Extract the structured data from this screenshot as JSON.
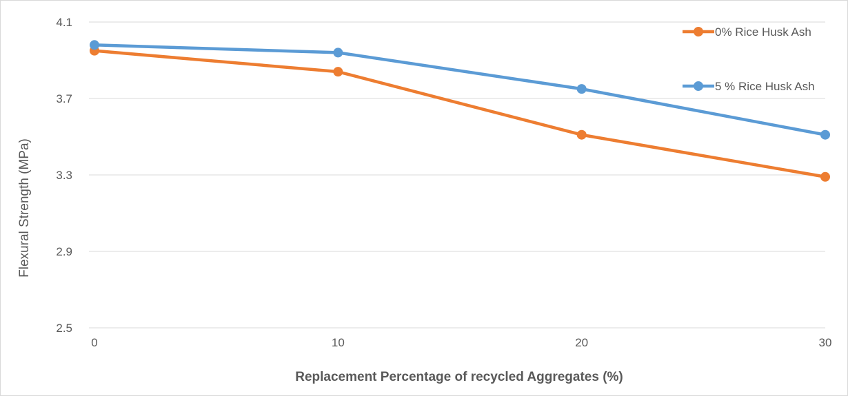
{
  "chart_data": {
    "type": "line",
    "title": "",
    "xlabel": "Replacement Percentage of recycled Aggregates (%)",
    "ylabel": "Flexural Strength (MPa)",
    "x": [
      0,
      10,
      20,
      30
    ],
    "x_tick_labels": [
      "0",
      "10",
      "20",
      "30"
    ],
    "ylim": [
      2.5,
      4.1
    ],
    "y_ticks": [
      2.5,
      2.9,
      3.3,
      3.7,
      4.1
    ],
    "y_tick_labels": [
      "2.5",
      "2.9",
      "3.3",
      "3.7",
      "4.1"
    ],
    "grid": "horizontal",
    "legend_position": "right",
    "series": [
      {
        "name": "0% Rice Husk Ash",
        "color": "#ed7d31",
        "values": [
          3.95,
          3.84,
          3.51,
          3.29
        ]
      },
      {
        "name": "5 % Rice Husk Ash",
        "color": "#5b9bd5",
        "values": [
          3.98,
          3.94,
          3.75,
          3.51
        ]
      }
    ]
  }
}
